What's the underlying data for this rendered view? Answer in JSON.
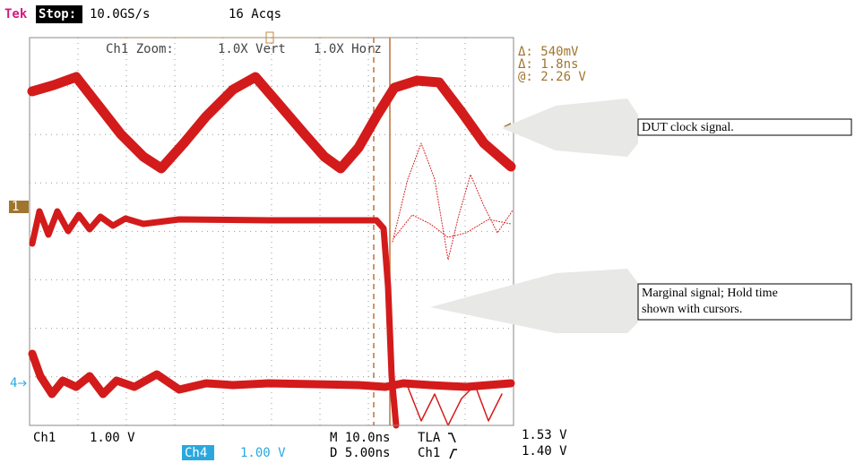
{
  "header": {
    "brand": "Tek",
    "state": "Stop:",
    "sample_rate": "10.0GS/s",
    "acquisitions": "16 Acqs"
  },
  "zoom": {
    "label": "Ch1 Zoom:",
    "vertical": "1.0X Vert",
    "horizontal": "1.0X Horz"
  },
  "cursor_readout": [
    "Δ: 540mV",
    "Δ: 1.8ns",
    "@: 2.26 V"
  ],
  "markers": {
    "ch1": "1",
    "ch4": "4"
  },
  "status": {
    "ch1_label": "Ch1",
    "ch1_scale": "1.00 V",
    "ch4_label": "Ch4",
    "ch4_scale": "1.00 V",
    "timebase": "M 10.0ns",
    "delay": "D 5.00ns",
    "trigger_a": "TLA",
    "trigger_b": "Ch1",
    "level_a": "1.53 V",
    "level_b": "1.40 V"
  },
  "callouts": [
    {
      "lines": [
        "DUT clock signal."
      ]
    },
    {
      "lines": [
        "Marginal signal; Hold time",
        "shown with cursors."
      ]
    }
  ]
}
